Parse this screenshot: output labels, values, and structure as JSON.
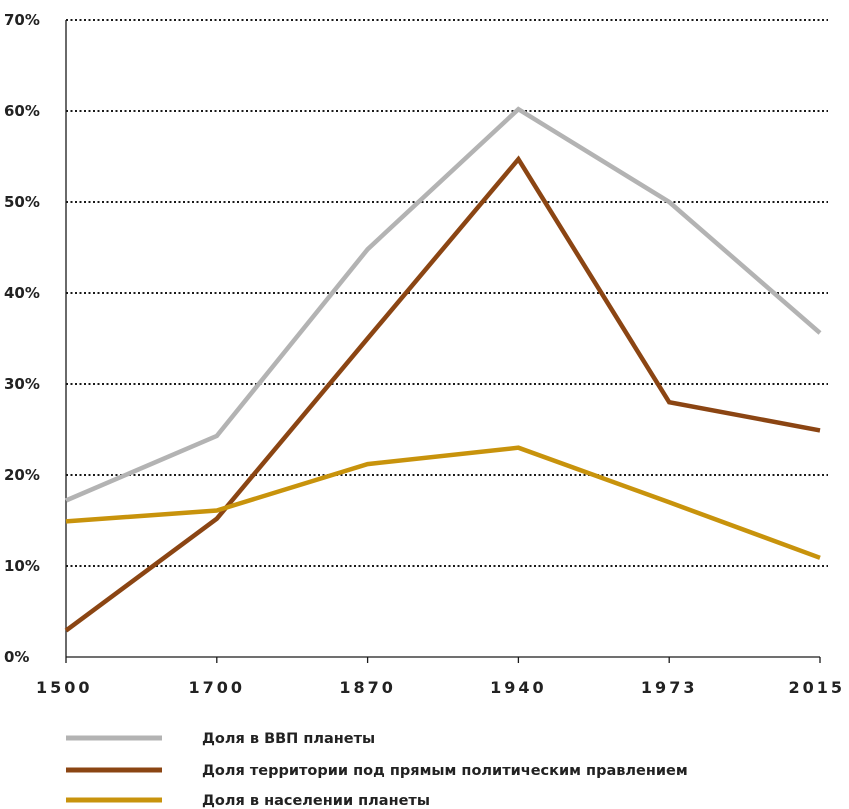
{
  "chart_data": {
    "type": "line",
    "x": [
      "1500",
      "1700",
      "1870",
      "1940",
      "1973",
      "2015"
    ],
    "series": [
      {
        "name": "Доля в ВВП планеты",
        "color": "#b3b3b3",
        "values": [
          17.2,
          24.3,
          44.8,
          60.2,
          50.0,
          35.6
        ]
      },
      {
        "name": "Доля территории под прямым политическим правлением",
        "color": "#8b4513",
        "values": [
          2.9,
          15.2,
          35.0,
          54.7,
          28.0,
          24.9
        ]
      },
      {
        "name": "Доля в населении планеты",
        "color": "#c8930c",
        "values": [
          14.9,
          16.1,
          21.2,
          23.0,
          17.0,
          10.9
        ]
      }
    ],
    "y_ticks": [
      "0%",
      "10%",
      "20%",
      "30%",
      "40%",
      "50%",
      "60%",
      "70%"
    ],
    "ylim": [
      0,
      70
    ],
    "grid": true,
    "legend_position": "bottom",
    "title": "",
    "xlabel": "",
    "ylabel": ""
  }
}
